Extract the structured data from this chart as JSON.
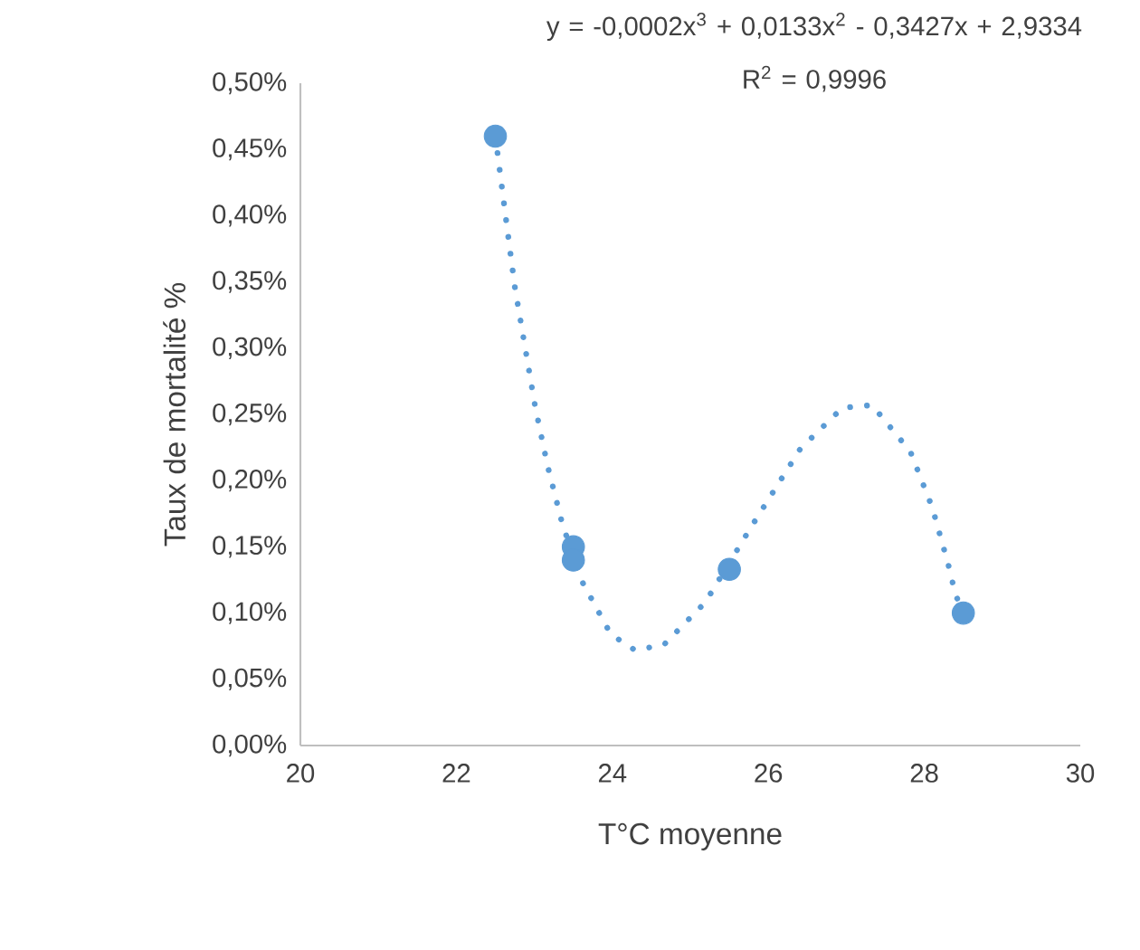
{
  "chart_data": {
    "type": "scatter",
    "xlabel": "T°C moyenne",
    "ylabel": "Taux de mortalité %",
    "annotations": [
      "y = -0,0002x$^{3}$ + 0,0133x$^{2}$ - 0,3427x + 2,9334",
      "R$^{2}$ = 0,9996"
    ],
    "xlim": [
      20,
      30
    ],
    "xticks": [
      20,
      22,
      24,
      26,
      28,
      30
    ],
    "ylim": [
      0,
      0.5
    ],
    "yticks": [
      {
        "value": 0,
        "label": "0,00%"
      },
      {
        "value": 0.05,
        "label": "0,05%"
      },
      {
        "value": 0.1,
        "label": "0,10%"
      },
      {
        "value": 0.15,
        "label": "0,15%"
      },
      {
        "value": 0.2,
        "label": "0,20%"
      },
      {
        "value": 0.25,
        "label": "0,25%"
      },
      {
        "value": 0.3,
        "label": "0,30%"
      },
      {
        "value": 0.35,
        "label": "0,35%"
      },
      {
        "value": 0.4,
        "label": "0,40%"
      },
      {
        "value": 0.45,
        "label": "0,45%"
      },
      {
        "value": 0.5,
        "label": "0,50%"
      }
    ],
    "marker": "circle",
    "grid": false,
    "series": [
      {
        "type": "line",
        "color": "#5b9bd5",
        "line_style": "dotted",
        "marker": "none",
        "x": [
          22.5,
          22.55,
          22.65,
          22.75,
          22.88,
          23.01,
          23.17,
          23.36,
          23.61,
          23.98,
          24.29,
          24.66,
          25.19,
          25.79,
          26.41,
          26.95,
          27.33,
          27.82,
          28.1,
          28.31,
          28.4,
          28.5
        ],
        "values": [
          0.46,
          0.437,
          0.391,
          0.346,
          0.301,
          0.256,
          0.211,
          0.167,
          0.124,
          0.084,
          0.072,
          0.076,
          0.108,
          0.166,
          0.224,
          0.255,
          0.257,
          0.222,
          0.18,
          0.136,
          0.114,
          0.1
        ]
      },
      {
        "color": "#5b9bd5",
        "x": [
          22.5,
          23.5,
          23.5,
          25.5,
          28.5
        ],
        "values": [
          0.46,
          0.15,
          0.14,
          0.133,
          0.1
        ]
      }
    ]
  }
}
